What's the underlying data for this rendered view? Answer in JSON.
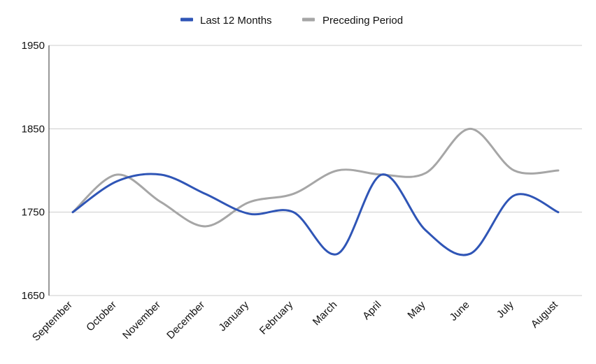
{
  "chart_data": {
    "type": "line",
    "title": "",
    "xlabel": "",
    "ylabel": "",
    "categories": [
      "September",
      "October",
      "November",
      "December",
      "January",
      "February",
      "March",
      "April",
      "May",
      "June",
      "July",
      "August"
    ],
    "series": [
      {
        "name": "Last 12 Months",
        "color": "#2f55b6",
        "values": [
          1750,
          1787,
          1795,
          1772,
          1748,
          1750,
          1700,
          1795,
          1728,
          1700,
          1770,
          1750
        ]
      },
      {
        "name": "Preceding Period",
        "color": "#a6a6a6",
        "values": [
          1750,
          1795,
          1762,
          1733,
          1762,
          1772,
          1800,
          1795,
          1797,
          1850,
          1800,
          1800
        ]
      }
    ],
    "ylim": [
      1650,
      1950
    ],
    "yticks": [
      1650,
      1750,
      1850,
      1950
    ],
    "grid": true,
    "legend_position": "top-center",
    "smooth": true,
    "grid_color": "#cccccc",
    "axis_color": "#333333"
  }
}
